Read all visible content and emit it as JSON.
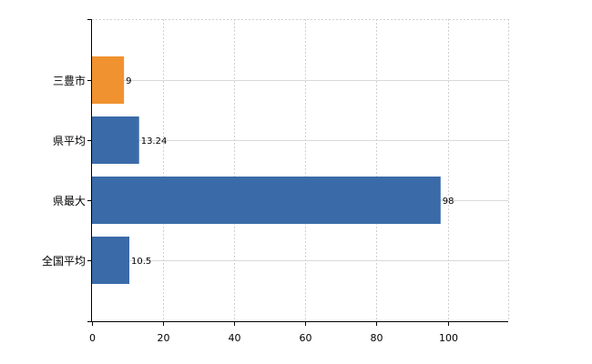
{
  "chart_data": {
    "type": "bar",
    "orientation": "horizontal",
    "categories": [
      "三豊市",
      "県平均",
      "県最大",
      "全国平均"
    ],
    "values": [
      9,
      13.24,
      98,
      10.5
    ],
    "data_labels": [
      "9",
      "13.24",
      "98",
      "10.5"
    ],
    "bar_colors": [
      "#f0922f",
      "#3a6ba8",
      "#3a6ba8",
      "#3a6ba8"
    ],
    "xlim": [
      0,
      117
    ],
    "xticks": [
      0,
      20,
      40,
      60,
      80,
      100
    ],
    "xtick_labels": [
      "0",
      "20",
      "40",
      "60",
      "80",
      "100"
    ],
    "grid": true,
    "legend": "none",
    "title": "",
    "xlabel": "",
    "ylabel": ""
  }
}
